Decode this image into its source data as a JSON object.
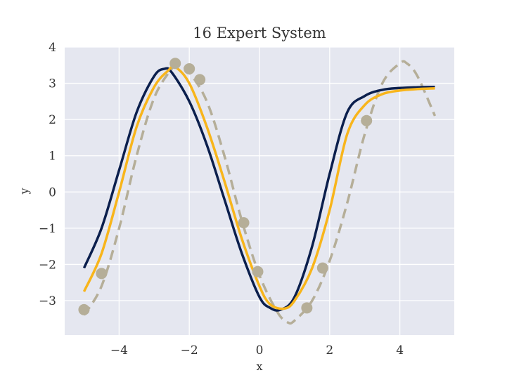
{
  "chart_data": {
    "type": "line",
    "title": "16 Expert System",
    "xlabel": "x",
    "ylabel": "y",
    "xlim": [
      -5.55,
      5.55
    ],
    "ylim": [
      -3.95,
      4.0
    ],
    "xticks": [
      -4,
      -2,
      0,
      2,
      4
    ],
    "xtick_labels": [
      "−4",
      "−2",
      "0",
      "2",
      "4"
    ],
    "yticks": [
      -3,
      -2,
      -1,
      0,
      1,
      2,
      3,
      4
    ],
    "ytick_labels": [
      "−3",
      "−2",
      "−1",
      "0",
      "1",
      "2",
      "3",
      "4"
    ],
    "grid": true,
    "legend": "none",
    "background": "#e5e7f0",
    "series": [
      {
        "style": "dashed",
        "color": "#b5ae98",
        "x": [
          -5.0,
          -4.5,
          -4.0,
          -3.5,
          -3.0,
          -2.5,
          -2.3,
          -2.0,
          -1.5,
          -1.0,
          -0.5,
          0.0,
          0.5,
          0.8,
          1.0,
          1.5,
          2.0,
          2.5,
          3.0,
          3.5,
          4.0,
          4.2,
          4.5,
          5.0
        ],
        "y": [
          -3.4,
          -2.6,
          -1.0,
          1.0,
          2.6,
          3.4,
          3.5,
          3.3,
          2.5,
          1.0,
          -0.8,
          -2.3,
          -3.3,
          -3.6,
          -3.55,
          -3.0,
          -1.9,
          -0.3,
          1.6,
          3.0,
          3.55,
          3.55,
          3.2,
          2.1
        ]
      },
      {
        "style": "solid",
        "color": "#0b1f4d",
        "x": [
          -5.0,
          -4.5,
          -4.0,
          -3.5,
          -3.0,
          -2.7,
          -2.5,
          -2.0,
          -1.5,
          -1.0,
          -0.5,
          0.0,
          0.3,
          0.6,
          1.0,
          1.5,
          2.0,
          2.5,
          3.0,
          3.5,
          4.0,
          4.5,
          5.0
        ],
        "y": [
          -2.1,
          -1.0,
          0.6,
          2.2,
          3.2,
          3.4,
          3.3,
          2.5,
          1.3,
          -0.2,
          -1.7,
          -2.9,
          -3.2,
          -3.25,
          -2.9,
          -1.5,
          0.5,
          2.2,
          2.65,
          2.82,
          2.87,
          2.89,
          2.9
        ]
      },
      {
        "style": "solid",
        "color": "#f8b51b",
        "x": [
          -5.0,
          -4.5,
          -4.0,
          -3.5,
          -3.0,
          -2.6,
          -2.4,
          -2.0,
          -1.5,
          -1.0,
          -0.5,
          0.0,
          0.3,
          0.7,
          1.0,
          1.5,
          2.0,
          2.5,
          3.0,
          3.5,
          4.0,
          4.5,
          5.0
        ],
        "y": [
          -2.75,
          -1.7,
          0.0,
          1.8,
          2.9,
          3.35,
          3.45,
          3.0,
          1.8,
          0.3,
          -1.3,
          -2.6,
          -3.1,
          -3.22,
          -3.0,
          -2.1,
          -0.5,
          1.6,
          2.4,
          2.7,
          2.8,
          2.84,
          2.86
        ]
      }
    ],
    "points": {
      "color": "#b5ae98",
      "x": [
        -5.0,
        -4.5,
        -2.4,
        -2.0,
        -1.7,
        -0.45,
        -0.05,
        1.35,
        1.8,
        3.05
      ],
      "y": [
        -3.25,
        -2.25,
        3.55,
        3.4,
        3.1,
        -0.85,
        -2.2,
        -3.2,
        -2.1,
        1.97
      ]
    }
  }
}
